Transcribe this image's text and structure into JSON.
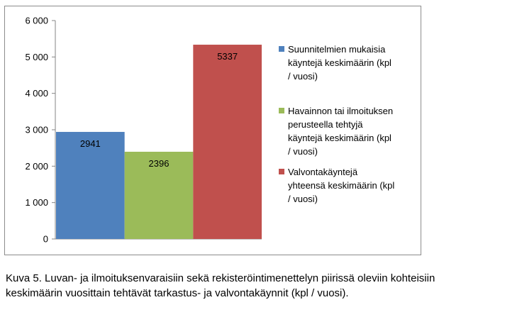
{
  "chart_data": {
    "type": "bar",
    "series": [
      {
        "name": "Suunnitelmien mukaisia käyntejä keskimäärin (kpl / vuosi)",
        "value": 2941,
        "label": "2941",
        "color": "#4f81bd",
        "legend_lines": [
          "Suunnitelmien mukaisia",
          "käyntejä keskimäärin (kpl",
          "/ vuosi)"
        ]
      },
      {
        "name": "Havainnon tai ilmoituksen perusteella tehtyjä käyntejä keskimäärin (kpl / vuosi)",
        "value": 2396,
        "label": "2396",
        "color": "#9bbb59",
        "legend_lines": [
          "Havainnon tai ilmoituksen",
          "perusteella tehtyjä",
          "käyntejä keskimäärin (kpl",
          "/ vuosi)"
        ]
      },
      {
        "name": "Valvontakäyntejä yhteensä keskimäärin (kpl / vuosi)",
        "value": 5337,
        "label": "5337",
        "color": "#c0504d",
        "legend_lines": [
          "Valvontakäyntejä",
          "yhteensä keskimäärin (kpl",
          "/ vuosi)"
        ]
      }
    ],
    "y_ticks": [
      {
        "value": 0,
        "label": "0"
      },
      {
        "value": 1000,
        "label": "1 000"
      },
      {
        "value": 2000,
        "label": "2 000"
      },
      {
        "value": 3000,
        "label": "3 000"
      },
      {
        "value": 4000,
        "label": "4 000"
      },
      {
        "value": 5000,
        "label": "5 000"
      },
      {
        "value": 6000,
        "label": "6 000"
      }
    ],
    "ylim": [
      0,
      6000
    ],
    "grid": false,
    "legend_position": "right"
  },
  "caption": {
    "line1": "Kuva 5. Luvan- ja ilmoituksenvaraisiin  sekä rekisteröintimenettelyn  piirissä oleviin kohteisiin",
    "line2": "keskimäärin vuosittain tehtävät tarkastus- ja valvontakäynnit (kpl / vuosi)."
  }
}
